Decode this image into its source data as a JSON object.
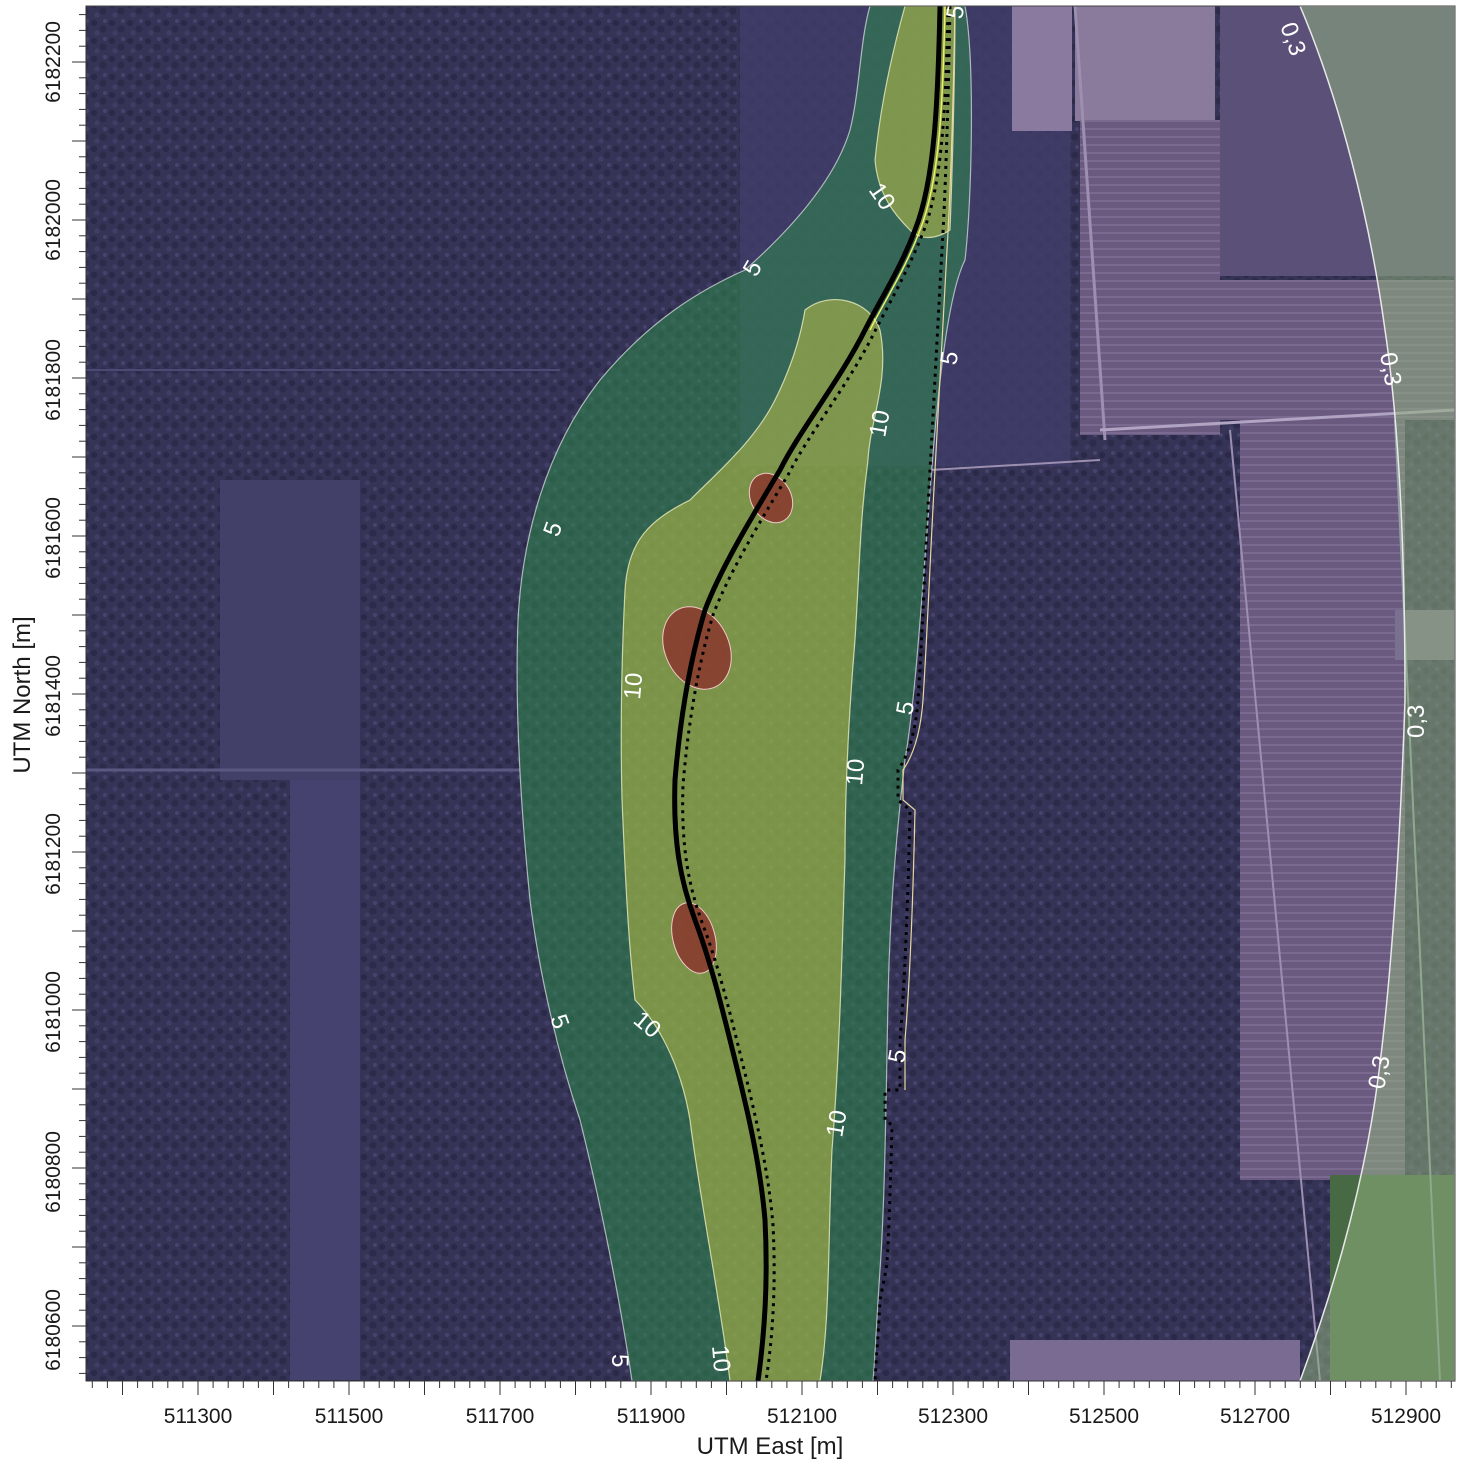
{
  "map": {
    "x_axis_title": "UTM East [m]",
    "y_axis_title": "UTM North [m]",
    "x_ticks": [
      "511300",
      "511500",
      "511700",
      "511900",
      "512100",
      "512300",
      "512500",
      "512700",
      "512900"
    ],
    "y_ticks": [
      "6182200",
      "6182000",
      "6181800",
      "6181600",
      "6181400",
      "6181200",
      "6181000",
      "6180800",
      "6180600"
    ],
    "contour_labels": {
      "c5": "5",
      "c10": "10",
      "c03": "0,3"
    },
    "colors": {
      "background_tint": "#3e3b6a",
      "zone_0_3": "#5a4f82",
      "zone_5": "#2f7a4a",
      "zone_10": "#a9ab3c",
      "zone_hot": "#8b2a2a",
      "road": "#000000",
      "road_edge": "#f0f060"
    }
  }
}
